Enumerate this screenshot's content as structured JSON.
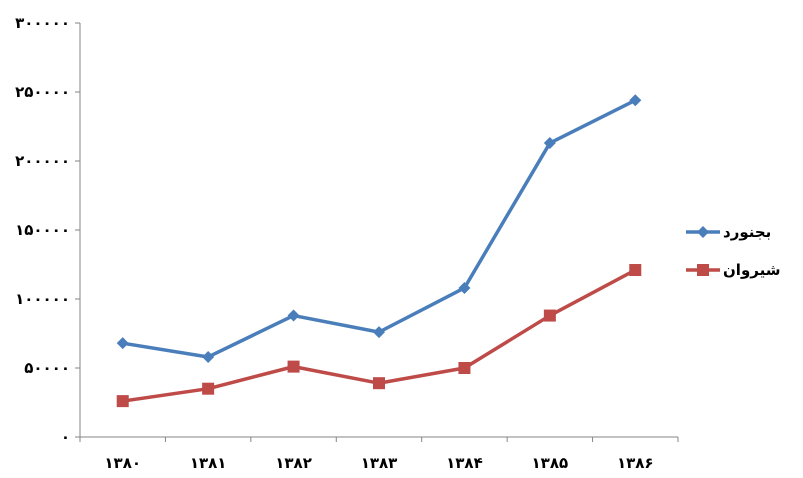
{
  "chart_data": {
    "type": "line",
    "categories": [
      "۱۳۸۰",
      "۱۳۸۱",
      "۱۳۸۲",
      "۱۳۸۳",
      "۱۳۸۴",
      "۱۳۸۵",
      "۱۳۸۶"
    ],
    "series": [
      {
        "name": "بجنورد",
        "values": [
          68000,
          58000,
          88000,
          76000,
          108000,
          213000,
          244000
        ],
        "color": "#4a7ebb",
        "marker": "diamond"
      },
      {
        "name": "شیروان",
        "values": [
          26000,
          35000,
          51000,
          39000,
          50000,
          88000,
          121000
        ],
        "color": "#be4b48",
        "marker": "square"
      }
    ],
    "ylim": [
      0,
      300000
    ],
    "yticks": [
      0,
      50000,
      100000,
      150000,
      200000,
      250000,
      300000
    ],
    "ytick_labels": [
      "۰",
      "۵۰۰۰۰",
      "۱۰۰۰۰۰",
      "۱۵۰۰۰۰",
      "۲۰۰۰۰۰",
      "۲۵۰۰۰۰",
      "۳۰۰۰۰۰"
    ],
    "title": "",
    "xlabel": "",
    "ylabel": "",
    "grid": false,
    "legend": "right"
  }
}
